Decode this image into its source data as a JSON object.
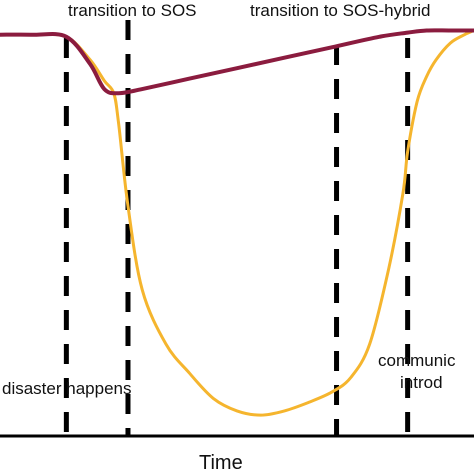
{
  "chart_data": {
    "type": "line",
    "title": "",
    "xlabel": "Time",
    "ylabel": "",
    "grid": false,
    "xlim": [
      0,
      100
    ],
    "ylim": [
      0,
      100
    ],
    "series": [
      {
        "name": "",
        "color": "#8b1c3f",
        "x": [
          0,
          7,
          14,
          19,
          22,
          25,
          30,
          40,
          50,
          60,
          70,
          80,
          86,
          90,
          95,
          100
        ],
        "y": [
          96,
          96,
          95.5,
          89,
          83,
          82,
          83,
          85.5,
          88,
          90.5,
          93,
          95.5,
          96.5,
          97,
          97,
          97
        ]
      },
      {
        "name": "",
        "color": "#f5b52e",
        "x": [
          0,
          7,
          14,
          19,
          22,
          24,
          25,
          27,
          30,
          35,
          40,
          45,
          50,
          55,
          60,
          65,
          70,
          74,
          78,
          82,
          85,
          86,
          88,
          90,
          92,
          95,
          98,
          100
        ],
        "y": [
          96,
          96,
          95.5,
          90,
          85,
          82,
          75,
          55,
          35,
          22,
          15,
          9,
          6,
          5,
          6,
          8,
          10.5,
          14,
          22,
          40,
          58,
          68,
          80,
          86,
          90,
          94,
          96,
          97
        ]
      }
    ],
    "markers": [
      {
        "x": 14,
        "label": "disaster happens"
      },
      {
        "x": 27,
        "label": "transition to SOS"
      },
      {
        "x": 71,
        "label": "transition to SOS-hybrid"
      },
      {
        "x": 86,
        "label": "communic… introd…"
      }
    ]
  },
  "annotations": {
    "disaster": "disaster happens",
    "sos": "transition to SOS",
    "sos_hybrid": "transition to SOS-hybrid",
    "community_line1": "communic",
    "community_line2": "introd"
  },
  "axes": {
    "x_label": "Time"
  },
  "colors": {
    "series_dark": "#8b1c3f",
    "series_light": "#f5b52e",
    "marker": "#000000",
    "axis": "#000000"
  }
}
